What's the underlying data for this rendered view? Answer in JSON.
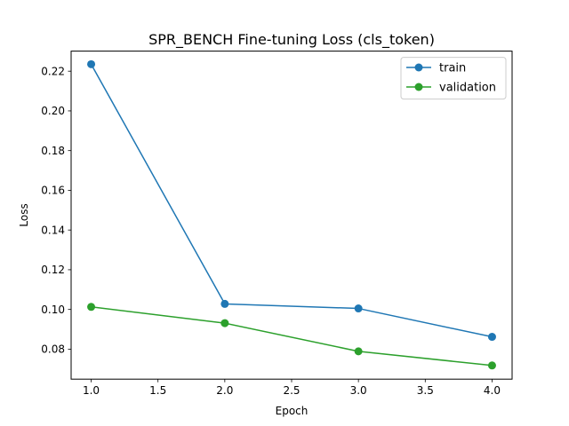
{
  "chart_data": {
    "type": "line",
    "title": "SPR_BENCH Fine-tuning Loss (cls_token)",
    "xlabel": "Epoch",
    "ylabel": "Loss",
    "x": [
      1.0,
      2.0,
      3.0,
      4.0
    ],
    "xlim": [
      0.85,
      4.15
    ],
    "ylim": [
      0.0649,
      0.2301
    ],
    "xticks": [
      "1.0",
      "1.5",
      "2.0",
      "2.5",
      "3.0",
      "3.5",
      "4.0"
    ],
    "yticks": [
      "0.08",
      "0.10",
      "0.12",
      "0.14",
      "0.16",
      "0.18",
      "0.20",
      "0.22"
    ],
    "grid": false,
    "legend_position": "top-right",
    "series": [
      {
        "name": "train",
        "color": "#1f77b4",
        "values": [
          0.2235,
          0.1028,
          0.1005,
          0.0862
        ]
      },
      {
        "name": "validation",
        "color": "#2ca02c",
        "values": [
          0.1013,
          0.0931,
          0.0789,
          0.0718
        ]
      }
    ]
  }
}
